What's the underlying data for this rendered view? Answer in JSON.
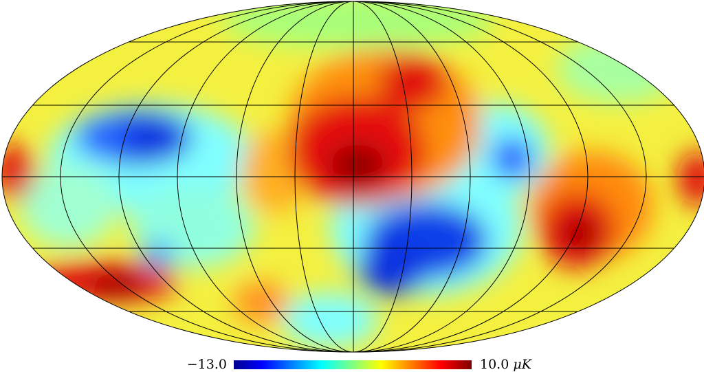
{
  "colorbar": {
    "min": {
      "value": -13,
      "label": "−13.0"
    },
    "max": {
      "value": 10,
      "label": "10.0"
    },
    "unit": "μK"
  }
}
